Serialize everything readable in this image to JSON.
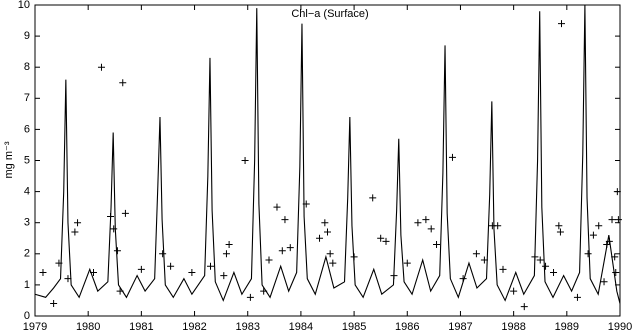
{
  "chart_data": {
    "type": "line",
    "title": "Chl−a (Surface)",
    "y_label": "mg m⁻³",
    "xlim": [
      1979,
      1990
    ],
    "xticks": [
      1979,
      1980,
      1981,
      1982,
      1983,
      1984,
      1985,
      1986,
      1987,
      1988,
      1989,
      1990
    ],
    "ylim": [
      0,
      10
    ],
    "yticks": [
      0,
      1,
      2,
      3,
      4,
      5,
      6,
      7,
      8,
      9,
      10
    ],
    "grid": false,
    "series": [
      {
        "kind": "line",
        "color": "#000000",
        "x": [
          1979.0,
          1979.2,
          1979.35,
          1979.48,
          1979.54,
          1979.58,
          1979.62,
          1979.68,
          1979.83,
          1980.03,
          1980.18,
          1980.37,
          1980.43,
          1980.47,
          1980.51,
          1980.57,
          1980.72,
          1980.92,
          1981.07,
          1981.25,
          1981.31,
          1981.35,
          1981.39,
          1981.45,
          1981.6,
          1981.8,
          1981.95,
          1982.19,
          1982.25,
          1982.29,
          1982.33,
          1982.39,
          1982.54,
          1982.74,
          1982.89,
          1983.07,
          1983.13,
          1983.17,
          1983.21,
          1983.27,
          1983.42,
          1983.62,
          1983.77,
          1983.92,
          1983.98,
          1984.02,
          1984.06,
          1984.12,
          1984.27,
          1984.47,
          1984.62,
          1984.82,
          1984.88,
          1984.92,
          1984.96,
          1985.02,
          1985.17,
          1985.37,
          1985.52,
          1985.74,
          1985.8,
          1985.84,
          1985.88,
          1985.94,
          1986.09,
          1986.29,
          1986.44,
          1986.61,
          1986.67,
          1986.71,
          1986.75,
          1986.81,
          1986.96,
          1987.16,
          1987.31,
          1987.49,
          1987.55,
          1987.59,
          1987.63,
          1987.69,
          1987.84,
          1988.04,
          1988.19,
          1988.39,
          1988.45,
          1988.49,
          1988.53,
          1988.59,
          1988.74,
          1988.94,
          1989.09,
          1989.24,
          1989.3,
          1989.34,
          1989.38,
          1989.44,
          1989.59,
          1989.79,
          1989.94,
          1990.0
        ],
        "values": [
          0.7,
          0.6,
          0.9,
          1.2,
          4.0,
          7.6,
          3.0,
          1.0,
          0.6,
          1.5,
          0.8,
          1.1,
          3.5,
          5.9,
          2.8,
          1.0,
          0.6,
          1.3,
          0.8,
          1.2,
          4.2,
          6.4,
          3.1,
          1.0,
          0.6,
          1.2,
          0.7,
          1.3,
          4.5,
          8.3,
          3.4,
          1.1,
          0.5,
          1.4,
          0.7,
          1.2,
          5.0,
          9.9,
          3.6,
          1.0,
          0.6,
          1.6,
          0.8,
          1.4,
          4.8,
          9.4,
          3.2,
          1.2,
          0.7,
          1.9,
          0.9,
          1.1,
          3.8,
          6.4,
          2.9,
          1.0,
          0.6,
          1.5,
          0.7,
          1.0,
          3.4,
          5.7,
          2.6,
          1.1,
          0.7,
          1.8,
          0.8,
          1.3,
          4.6,
          8.7,
          3.3,
          1.2,
          0.6,
          1.7,
          0.9,
          1.2,
          3.9,
          6.9,
          2.8,
          1.0,
          0.5,
          1.4,
          0.7,
          1.3,
          5.0,
          9.8,
          3.5,
          1.1,
          0.6,
          1.3,
          0.8,
          1.4,
          5.2,
          10.0,
          3.8,
          1.2,
          0.7,
          2.6,
          0.8,
          0.4
        ]
      },
      {
        "kind": "scatter",
        "color": "#000000",
        "x": [
          1979.15,
          1979.35,
          1979.45,
          1979.62,
          1979.75,
          1979.8,
          1980.1,
          1980.25,
          1980.42,
          1980.48,
          1980.55,
          1980.6,
          1980.65,
          1980.7,
          1981.0,
          1981.4,
          1981.55,
          1981.95,
          1982.3,
          1982.55,
          1982.6,
          1982.65,
          1982.95,
          1983.05,
          1983.3,
          1983.4,
          1983.55,
          1983.65,
          1983.7,
          1983.8,
          1984.1,
          1984.35,
          1984.45,
          1984.5,
          1984.55,
          1984.6,
          1985.0,
          1985.35,
          1985.5,
          1985.6,
          1985.75,
          1986.0,
          1986.2,
          1986.35,
          1986.45,
          1986.55,
          1986.85,
          1987.05,
          1987.3,
          1987.45,
          1987.6,
          1987.7,
          1987.8,
          1988.0,
          1988.2,
          1988.4,
          1988.5,
          1988.6,
          1988.75,
          1988.85,
          1988.88,
          1988.9,
          1989.2,
          1989.4,
          1989.5,
          1989.6,
          1989.7,
          1989.75,
          1989.8,
          1989.85,
          1989.9,
          1989.92,
          1989.95,
          1989.97
        ],
        "values": [
          1.4,
          0.4,
          1.7,
          1.2,
          2.7,
          3.0,
          1.4,
          8.0,
          3.2,
          2.8,
          2.1,
          0.8,
          7.5,
          3.3,
          1.5,
          2.0,
          1.6,
          1.4,
          1.6,
          1.3,
          2.0,
          2.3,
          5.0,
          0.6,
          0.8,
          1.8,
          3.5,
          2.1,
          3.1,
          2.2,
          3.6,
          2.5,
          3.0,
          2.7,
          2.0,
          1.7,
          1.9,
          3.8,
          2.5,
          2.4,
          1.3,
          1.7,
          3.0,
          3.1,
          2.8,
          2.3,
          5.1,
          1.2,
          2.0,
          1.8,
          2.9,
          2.9,
          1.5,
          0.8,
          0.3,
          1.9,
          1.8,
          1.6,
          1.4,
          2.9,
          2.7,
          9.4,
          0.6,
          2.0,
          2.6,
          2.9,
          1.1,
          2.3,
          2.4,
          3.1,
          1.9,
          1.4,
          4.0,
          3.1
        ]
      }
    ]
  }
}
